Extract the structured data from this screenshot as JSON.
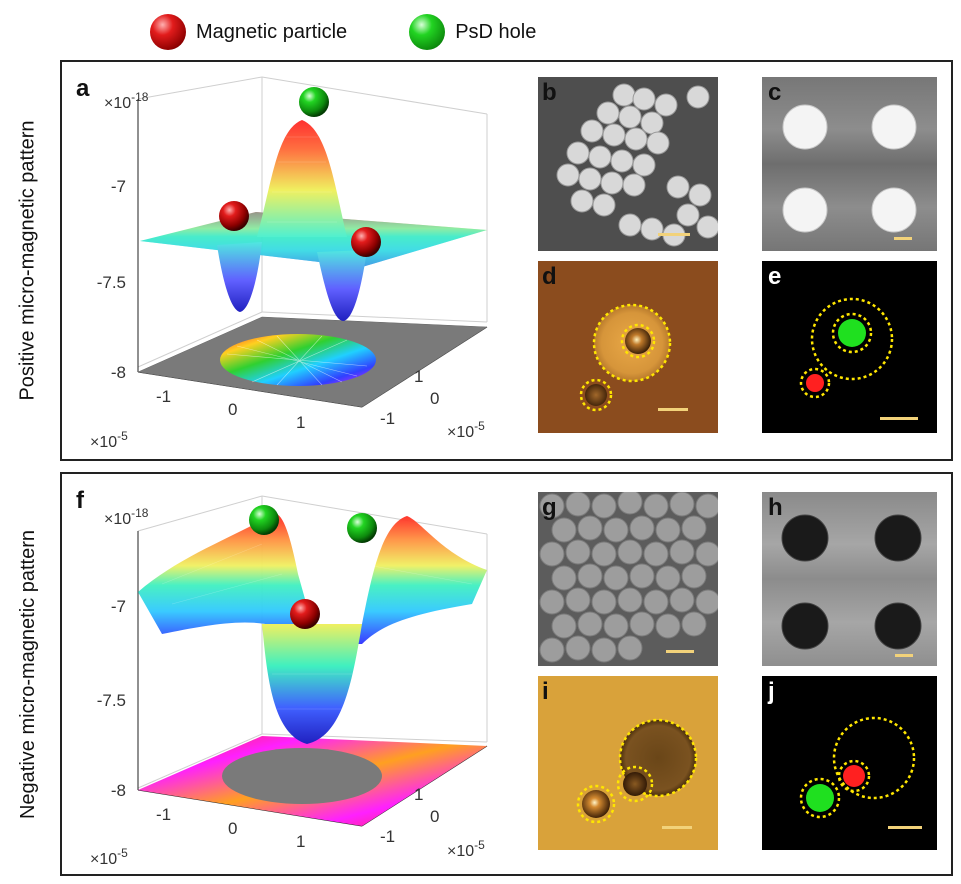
{
  "legend": {
    "items": [
      {
        "label": "Magnetic particle",
        "icon": "red-sphere",
        "color": "#e21c1c"
      },
      {
        "label": "PsD hole",
        "icon": "green-sphere",
        "color": "#22c922"
      }
    ]
  },
  "panels": {
    "top": {
      "side_label": "Positive micro-magnetic pattern",
      "plot": {
        "letter": "a",
        "z_exponent": "×10",
        "z_exponent_power": "-18",
        "z_ticks": [
          "-7",
          "-7.5",
          "-8"
        ],
        "x_ticks": [
          "-1",
          "0",
          "1"
        ],
        "y_ticks": [
          "1",
          "0",
          "-1"
        ],
        "x_exponent": "×10",
        "x_exponent_power": "-5",
        "y_exponent": "×10",
        "y_exponent_power": "-5"
      },
      "letters": {
        "b": "b",
        "c": "c",
        "d": "d",
        "e": "e"
      }
    },
    "bottom": {
      "side_label": "Negative micro-magnetic pattern",
      "plot": {
        "letter": "f",
        "z_exponent": "×10",
        "z_exponent_power": "-18",
        "z_ticks": [
          "-7",
          "-7.5",
          "-8"
        ],
        "x_ticks": [
          "-1",
          "0",
          "1"
        ],
        "y_ticks": [
          "1",
          "0",
          "-1"
        ],
        "x_exponent": "×10",
        "x_exponent_power": "-5",
        "y_exponent": "×10",
        "y_exponent_power": "-5"
      },
      "letters": {
        "g": "g",
        "h": "h",
        "i": "i",
        "j": "j"
      }
    }
  },
  "colors": {
    "scale_bar": "#f2d27a",
    "dashed_circle": "#ffe600",
    "micrograph_gray": "#8a8a8a",
    "optical_orange": "#8b4c1e",
    "optical_yellow": "#d9a23a"
  }
}
